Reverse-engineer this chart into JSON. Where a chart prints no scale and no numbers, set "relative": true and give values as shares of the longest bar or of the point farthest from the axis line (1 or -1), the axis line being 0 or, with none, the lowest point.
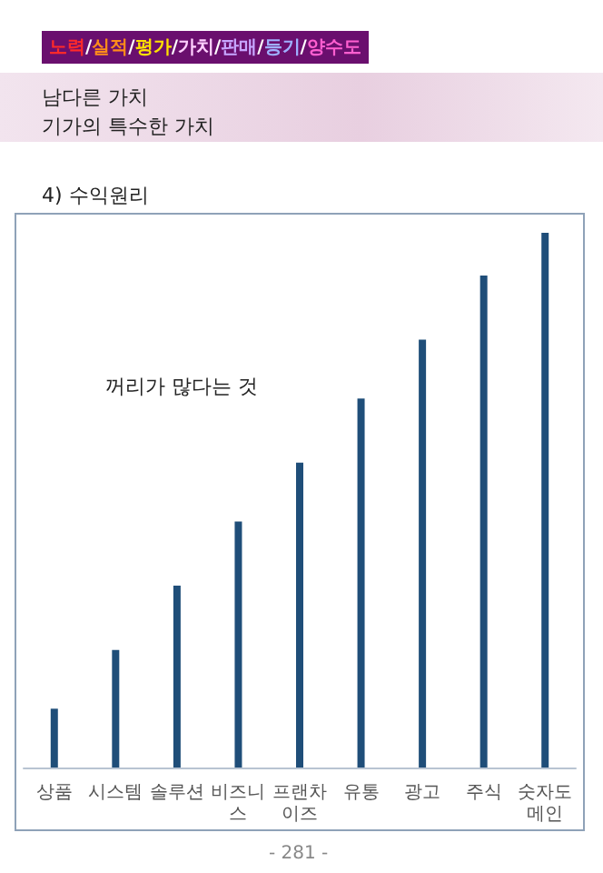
{
  "chart_data": {
    "type": "bar",
    "title": "4) 수익원리",
    "relative": true,
    "color": "#1f4e79",
    "categories": [
      "상품",
      "시스템",
      "솔루션",
      "비즈니스",
      "프랜차이즈",
      "유통",
      "광고",
      "주식",
      "숫자도메인"
    ],
    "values": [
      0.11,
      0.22,
      0.34,
      0.46,
      0.57,
      0.69,
      0.8,
      0.92,
      1
    ],
    "annotations": [
      "노력/실적/평가/가치/판매/등기/양수도",
      "남다른 가치",
      "기가의 특수한 가치",
      "꺼리가 많다는 것",
      "- 281 -"
    ]
  }
}
